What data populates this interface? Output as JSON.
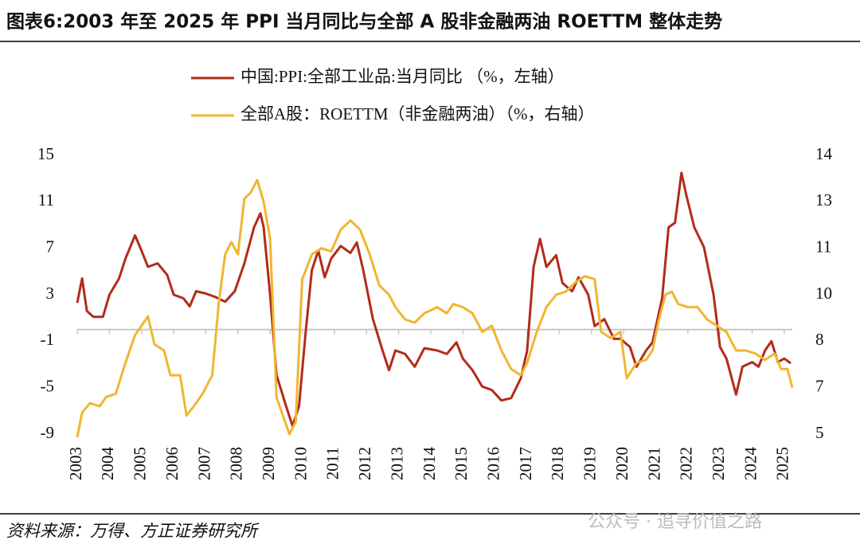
{
  "chart_data": {
    "type": "line",
    "title": "图表6:2003 年至 2025 年 PPI 当月同比与全部 A 股非金融两油 ROETTM 整体走势",
    "source": "资料来源：万得、方正证券研究所",
    "watermark": "公众号 · 追寻价值之路",
    "xlim": [
      2003,
      2025.25
    ],
    "xticks": [
      2003,
      2004,
      2005,
      2006,
      2007,
      2008,
      2009,
      2010,
      2011,
      2012,
      2013,
      2014,
      2015,
      2016,
      2017,
      2018,
      2019,
      2020,
      2021,
      2022,
      2023,
      2024,
      2025
    ],
    "ylim": [
      -9,
      15
    ],
    "yticks": [
      -9,
      -5,
      -1,
      3,
      7,
      11,
      15
    ],
    "y2lim": [
      5,
      14
    ],
    "y2ticks": [
      5,
      {
        "value": 6.5,
        "label": "7"
      },
      8,
      {
        "value": 9.5,
        "label": "10"
      },
      11,
      {
        "value": 12.5,
        "label": "13"
      },
      14
    ],
    "grid": false,
    "legend": "top",
    "series": [
      {
        "name": "中国:PPI:全部工业品:当月同比 （%，左轴）",
        "color": "#b22b1a",
        "axis": "y",
        "x": [
          2003.0,
          2003.15,
          2003.3,
          2003.5,
          2003.8,
          2004.0,
          2004.3,
          2004.5,
          2004.8,
          2005.0,
          2005.2,
          2005.5,
          2005.8,
          2006.0,
          2006.3,
          2006.5,
          2006.7,
          2007.0,
          2007.3,
          2007.6,
          2007.9,
          2008.2,
          2008.5,
          2008.7,
          2008.8,
          2009.0,
          2009.2,
          2009.5,
          2009.7,
          2009.9,
          2010.1,
          2010.3,
          2010.5,
          2010.7,
          2010.9,
          2011.2,
          2011.5,
          2011.7,
          2011.9,
          2012.2,
          2012.5,
          2012.7,
          2012.9,
          2013.2,
          2013.5,
          2013.8,
          2014.2,
          2014.5,
          2014.8,
          2015.0,
          2015.3,
          2015.6,
          2015.9,
          2016.2,
          2016.5,
          2016.8,
          2017.0,
          2017.2,
          2017.4,
          2017.6,
          2017.9,
          2018.1,
          2018.4,
          2018.6,
          2018.9,
          2019.1,
          2019.4,
          2019.7,
          2019.9,
          2020.2,
          2020.4,
          2020.7,
          2020.9,
          2021.2,
          2021.4,
          2021.6,
          2021.8,
          2021.95,
          2022.2,
          2022.5,
          2022.8,
          2023.0,
          2023.2,
          2023.5,
          2023.7,
          2024.0,
          2024.2,
          2024.4,
          2024.6,
          2024.8,
          2025.0,
          2025.2
        ],
        "values": [
          2.3,
          4.4,
          1.6,
          1.1,
          1.1,
          3.0,
          4.4,
          6.1,
          8.1,
          6.8,
          5.4,
          5.7,
          4.7,
          3.0,
          2.7,
          2.0,
          3.3,
          3.1,
          2.8,
          2.4,
          3.3,
          5.7,
          8.8,
          10.0,
          8.8,
          3.0,
          -3.9,
          -6.6,
          -8.3,
          -6.6,
          -0.4,
          5.1,
          6.8,
          4.5,
          6.1,
          7.2,
          6.6,
          7.5,
          5.1,
          0.9,
          -1.8,
          -3.5,
          -1.8,
          -2.1,
          -3.2,
          -1.6,
          -1.8,
          -2.1,
          -1.1,
          -2.5,
          -3.5,
          -4.9,
          -5.2,
          -6.1,
          -5.9,
          -4.2,
          -1.8,
          5.4,
          7.8,
          5.4,
          6.4,
          4.0,
          3.3,
          4.5,
          3.0,
          0.3,
          0.9,
          -0.8,
          -0.8,
          -1.5,
          -3.2,
          -1.8,
          -1.1,
          2.7,
          8.8,
          9.2,
          13.5,
          11.6,
          8.8,
          7.1,
          3.0,
          -1.5,
          -2.5,
          -5.6,
          -3.2,
          -2.8,
          -3.2,
          -1.8,
          -1.0,
          -2.8,
          -2.5,
          -2.9
        ]
      },
      {
        "name": "全部A股：ROETTM（非金融两油）（%，右轴）",
        "color": "#f0b630",
        "axis": "y2",
        "x": [
          2003.0,
          2003.15,
          2003.4,
          2003.7,
          2003.9,
          2004.2,
          2004.5,
          2004.8,
          2005.0,
          2005.2,
          2005.4,
          2005.7,
          2005.9,
          2006.2,
          2006.4,
          2006.7,
          2006.9,
          2007.2,
          2007.4,
          2007.6,
          2007.8,
          2008.0,
          2008.2,
          2008.4,
          2008.6,
          2008.8,
          2009.0,
          2009.2,
          2009.4,
          2009.6,
          2009.8,
          2010.0,
          2010.3,
          2010.6,
          2010.9,
          2011.2,
          2011.5,
          2011.8,
          2012.1,
          2012.4,
          2012.7,
          2012.9,
          2013.2,
          2013.5,
          2013.8,
          2014.2,
          2014.5,
          2014.7,
          2015.0,
          2015.3,
          2015.6,
          2015.9,
          2016.2,
          2016.5,
          2016.8,
          2017.0,
          2017.3,
          2017.6,
          2017.9,
          2018.2,
          2018.5,
          2018.8,
          2019.1,
          2019.3,
          2019.6,
          2019.9,
          2020.1,
          2020.4,
          2020.7,
          2020.9,
          2021.1,
          2021.3,
          2021.5,
          2021.7,
          2022.0,
          2022.3,
          2022.6,
          2022.9,
          2023.2,
          2023.5,
          2023.8,
          2024.1,
          2024.4,
          2024.7,
          2024.9,
          2025.1,
          2025.25
        ],
        "values": [
          4.9,
          5.7,
          6.0,
          5.9,
          6.2,
          6.3,
          7.3,
          8.2,
          8.5,
          8.8,
          7.9,
          7.7,
          6.9,
          6.9,
          5.6,
          6.0,
          6.3,
          6.9,
          9.2,
          10.8,
          11.2,
          10.8,
          12.6,
          12.8,
          13.2,
          12.5,
          11.3,
          6.2,
          5.6,
          5.0,
          5.4,
          10.0,
          10.8,
          11.0,
          10.9,
          11.6,
          11.9,
          11.6,
          10.8,
          9.8,
          9.5,
          9.1,
          8.7,
          8.6,
          8.9,
          9.1,
          8.9,
          9.2,
          9.1,
          8.9,
          8.3,
          8.5,
          7.7,
          7.1,
          6.9,
          7.3,
          8.3,
          9.1,
          9.5,
          9.6,
          9.9,
          10.1,
          10.0,
          8.3,
          8.1,
          8.3,
          6.8,
          7.3,
          7.4,
          7.7,
          8.7,
          9.5,
          9.6,
          9.2,
          9.1,
          9.1,
          8.7,
          8.5,
          8.3,
          7.7,
          7.7,
          7.6,
          7.4,
          7.6,
          7.1,
          7.1,
          6.5
        ]
      }
    ]
  }
}
